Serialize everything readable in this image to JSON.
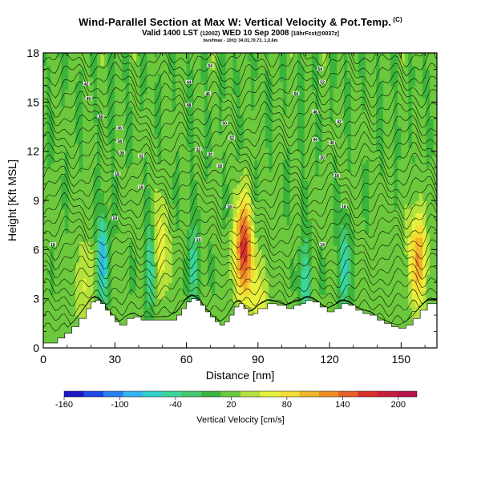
{
  "header": {
    "title": "Wind-Parallel Section at Max W: Vertical Velocity & Pot.Temp.",
    "title_mark": "(C)",
    "subtitle_main": "Valid 1400 LST",
    "subtitle_z": "(1200Z)",
    "subtitle_day": "WED 10 Sep 2008",
    "subtitle_run": "[18hrFcst@0037z]",
    "info": "bvo/fmax - 10f@ 34.01,70.73, 1,0,6m"
  },
  "chart_data": {
    "type": "heatmap",
    "title": "Wind-Parallel Section at Max W: Vertical Velocity & Pot.Temp.",
    "xlabel": "Distance [nm]",
    "ylabel": "Height [Kft MSL]",
    "xlim": [
      0,
      165
    ],
    "ylim": [
      0,
      18
    ],
    "xticks": [
      0,
      30,
      60,
      90,
      120,
      150
    ],
    "yticks": [
      0,
      3,
      6,
      9,
      12,
      15,
      18
    ],
    "xtick_labels": [
      "0",
      "30",
      "60",
      "90",
      "120",
      "150"
    ],
    "ytick_labels": [
      "0",
      "3",
      "6",
      "9",
      "12",
      "15",
      "18"
    ],
    "colorbar": {
      "label": "Vertical Velocity [cm/s]",
      "min": -160,
      "max": 220,
      "tick_values": [
        -160,
        -100,
        -40,
        20,
        80,
        140,
        200
      ],
      "tick_labels": [
        "-160",
        "-100",
        "-40",
        "20",
        "80",
        "140",
        "200"
      ],
      "colors": [
        "#1818c8",
        "#1f48e8",
        "#2a7ff0",
        "#35b2f0",
        "#2fd0c8",
        "#3bd59a",
        "#46c86e",
        "#3cb43c",
        "#6cc83c",
        "#b4e13c",
        "#e6f03c",
        "#f5dc32",
        "#f0b428",
        "#f08c28",
        "#e8602a",
        "#d8302a",
        "#c81e3c",
        "#b8144c"
      ]
    },
    "terrain": {
      "x": [
        0,
        3,
        6,
        9,
        12,
        15,
        18,
        20,
        22,
        24,
        26,
        28,
        30,
        32,
        35,
        38,
        41,
        44,
        48,
        52,
        56,
        58,
        60,
        62,
        64,
        66,
        68,
        70,
        72,
        74,
        76,
        78,
        80,
        82,
        84,
        86,
        88,
        90,
        94,
        98,
        102,
        105,
        108,
        110,
        113,
        116,
        119,
        122,
        125,
        128,
        131,
        134,
        137,
        140,
        143,
        146,
        149,
        152,
        155,
        158,
        161,
        165
      ],
      "height_kft": [
        0.3,
        0.3,
        0.6,
        0.9,
        1.3,
        1.8,
        2.4,
        2.8,
        2.9,
        2.7,
        2.3,
        2.0,
        1.6,
        1.4,
        1.8,
        1.9,
        1.7,
        1.7,
        1.7,
        1.7,
        2.0,
        2.4,
        2.8,
        3.0,
        2.9,
        2.6,
        2.2,
        1.9,
        1.6,
        1.4,
        1.6,
        2.0,
        2.5,
        2.7,
        2.4,
        2.0,
        2.1,
        2.4,
        2.7,
        2.6,
        2.4,
        2.6,
        2.7,
        2.9,
        2.8,
        2.5,
        2.2,
        2.4,
        2.7,
        2.6,
        2.3,
        2.1,
        2.0,
        1.7,
        1.5,
        1.3,
        1.2,
        1.4,
        1.8,
        2.3,
        2.7,
        2.7
      ]
    },
    "updraft_cores": [
      {
        "x": 84,
        "y": 6.0,
        "peak_cm_s": 180
      },
      {
        "x": 157,
        "y": 5.5,
        "peak_cm_s": 120
      },
      {
        "x": 49,
        "y": 6.0,
        "peak_cm_s": 80
      },
      {
        "x": 91,
        "y": 2.5,
        "peak_cm_s": 70
      },
      {
        "x": 17,
        "y": 4.0,
        "peak_cm_s": 60
      }
    ],
    "downdraft_cores": [
      {
        "x": 25,
        "y": 5.5,
        "min_cm_s": -80
      },
      {
        "x": 45,
        "y": 5.0,
        "min_cm_s": -60
      },
      {
        "x": 126,
        "y": 5.0,
        "min_cm_s": -60
      },
      {
        "x": 110,
        "y": 4.0,
        "min_cm_s": -50
      },
      {
        "x": 63,
        "y": 5.0,
        "min_cm_s": -40
      }
    ],
    "isentrope_labels": [
      {
        "x": 4,
        "y": 6.3,
        "text": "18"
      },
      {
        "x": 30,
        "y": 7.9,
        "text": "14"
      },
      {
        "x": 65,
        "y": 6.6,
        "text": "14"
      },
      {
        "x": 117,
        "y": 6.3,
        "text": "14"
      },
      {
        "x": 31,
        "y": 10.6,
        "text": "18"
      },
      {
        "x": 41,
        "y": 9.8,
        "text": "18"
      },
      {
        "x": 78,
        "y": 8.6,
        "text": "18"
      },
      {
        "x": 126,
        "y": 8.6,
        "text": "18"
      },
      {
        "x": 74,
        "y": 11.1,
        "text": "18"
      },
      {
        "x": 33,
        "y": 11.9,
        "text": "08"
      },
      {
        "x": 41,
        "y": 11.7,
        "text": "32"
      },
      {
        "x": 65,
        "y": 12.1,
        "text": "32"
      },
      {
        "x": 70,
        "y": 11.8,
        "text": "30"
      },
      {
        "x": 117,
        "y": 11.6,
        "text": "30"
      },
      {
        "x": 123,
        "y": 10.5,
        "text": "18"
      },
      {
        "x": 32,
        "y": 12.6,
        "text": "34"
      },
      {
        "x": 32,
        "y": 13.4,
        "text": "36"
      },
      {
        "x": 24,
        "y": 14.1,
        "text": "38"
      },
      {
        "x": 19,
        "y": 15.2,
        "text": "40"
      },
      {
        "x": 18,
        "y": 16.1,
        "text": "42"
      },
      {
        "x": 61,
        "y": 16.2,
        "text": "44"
      },
      {
        "x": 69,
        "y": 15.5,
        "text": "46"
      },
      {
        "x": 61,
        "y": 14.8,
        "text": "48"
      },
      {
        "x": 76,
        "y": 13.7,
        "text": "50"
      },
      {
        "x": 79,
        "y": 12.8,
        "text": "52"
      },
      {
        "x": 70,
        "y": 17.2,
        "text": "54"
      },
      {
        "x": 106,
        "y": 15.5,
        "text": "50"
      },
      {
        "x": 114,
        "y": 14.4,
        "text": "46"
      },
      {
        "x": 124,
        "y": 13.8,
        "text": "42"
      },
      {
        "x": 114,
        "y": 12.7,
        "text": "44"
      },
      {
        "x": 121,
        "y": 12.5,
        "text": "40"
      },
      {
        "x": 117,
        "y": 16.2,
        "text": "52"
      },
      {
        "x": 116,
        "y": 17.0,
        "text": "54"
      }
    ]
  }
}
